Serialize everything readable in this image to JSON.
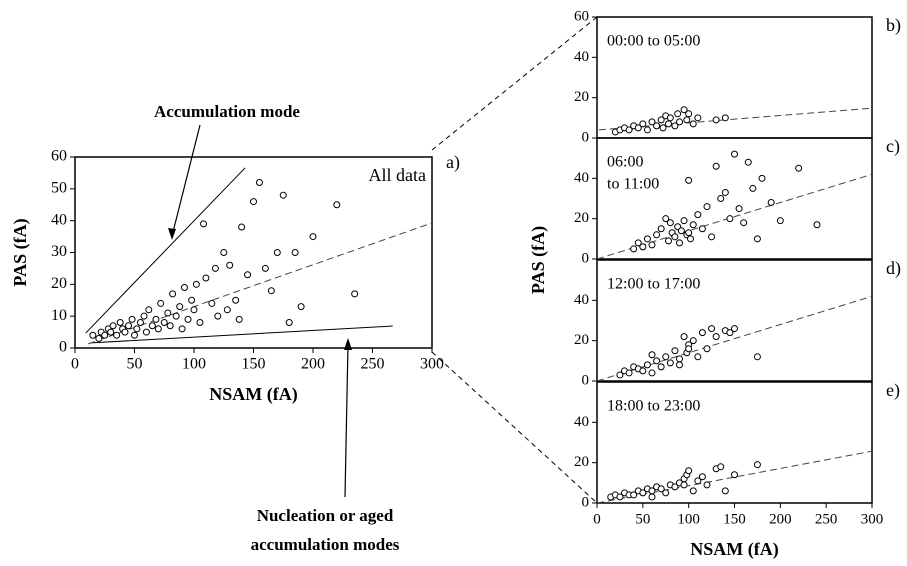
{
  "chart_data": [
    {
      "type": "scatter",
      "xlabel": "NSAM (fA)",
      "ylabel": "PAS (fA)",
      "panel_label": "a)",
      "label_lines": [
        "All data"
      ],
      "xlim": [
        0,
        300
      ],
      "ylim": [
        0,
        60
      ],
      "xticks": [
        0,
        50,
        100,
        150,
        200,
        250,
        300
      ],
      "yticks": [
        0,
        10,
        20,
        30,
        40,
        50,
        60
      ],
      "x": [
        15,
        20,
        22,
        25,
        28,
        30,
        32,
        35,
        38,
        40,
        42,
        45,
        48,
        50,
        52,
        55,
        58,
        60,
        62,
        65,
        68,
        70,
        72,
        75,
        78,
        80,
        82,
        85,
        88,
        90,
        92,
        95,
        98,
        100,
        102,
        105,
        108,
        110,
        115,
        118,
        120,
        125,
        128,
        130,
        135,
        138,
        140,
        145,
        150,
        155,
        160,
        165,
        170,
        175,
        180,
        185,
        190,
        200,
        220,
        235
      ],
      "y": [
        4,
        3,
        5,
        4,
        6,
        5,
        7,
        4,
        8,
        6,
        5,
        7,
        9,
        4,
        6,
        8,
        10,
        5,
        12,
        7,
        9,
        6,
        14,
        8,
        11,
        7,
        17,
        10,
        13,
        6,
        19,
        9,
        15,
        12,
        20,
        8,
        39,
        22,
        14,
        25,
        10,
        30,
        12,
        26,
        15,
        9,
        38,
        23,
        46,
        52,
        25,
        18,
        30,
        48,
        8,
        30,
        13,
        35,
        45,
        17
      ],
      "lines": [
        {
          "x": [
            9,
            143
          ],
          "y": [
            4.7,
            56.6
          ],
          "dashed": false
        },
        {
          "x": [
            13,
            267
          ],
          "y": [
            1.6,
            6.9
          ],
          "dashed": false
        },
        {
          "x": [
            11,
            300
          ],
          "y": [
            1.3,
            39.3
          ],
          "dashed": true
        }
      ]
    },
    {
      "type": "scatter",
      "panel_label": "b)",
      "label_lines": [
        "00:00 to 05:00"
      ],
      "xlim": [
        0,
        300
      ],
      "ylim": [
        0,
        60
      ],
      "yticks": [
        0,
        20,
        40,
        60
      ],
      "x": [
        20,
        25,
        30,
        35,
        40,
        45,
        50,
        55,
        60,
        65,
        70,
        72,
        75,
        78,
        80,
        85,
        88,
        90,
        95,
        98,
        100,
        105,
        110,
        130,
        140
      ],
      "y": [
        3,
        4,
        5,
        4,
        6,
        5,
        7,
        4,
        8,
        6,
        9,
        5,
        11,
        7,
        10,
        6,
        12,
        8,
        14,
        9,
        12,
        7,
        10,
        9,
        10
      ],
      "lines": [
        {
          "x": [
            2,
            300
          ],
          "y": [
            4,
            14.8
          ],
          "dashed": true
        }
      ]
    },
    {
      "type": "scatter",
      "panel_label": "c)",
      "label_lines": [
        "06:00",
        "to 11:00"
      ],
      "ylabel": "PAS (fA)",
      "xlim": [
        0,
        300
      ],
      "ylim": [
        0,
        60
      ],
      "yticks": [
        0,
        20,
        40
      ],
      "x": [
        40,
        45,
        50,
        55,
        60,
        65,
        70,
        75,
        78,
        80,
        82,
        85,
        88,
        90,
        92,
        95,
        98,
        100,
        102,
        105,
        110,
        115,
        120,
        125,
        130,
        135,
        140,
        145,
        150,
        155,
        160,
        165,
        170,
        175,
        180,
        190,
        200,
        220,
        240,
        100
      ],
      "y": [
        5,
        8,
        6,
        10,
        7,
        12,
        15,
        20,
        9,
        18,
        13,
        11,
        16,
        8,
        14,
        19,
        12,
        39,
        10,
        17,
        22,
        15,
        26,
        11,
        46,
        30,
        33,
        20,
        52,
        25,
        18,
        48,
        35,
        10,
        40,
        28,
        19,
        45,
        17,
        13
      ],
      "lines": [
        {
          "x": [
            0,
            300
          ],
          "y": [
            0,
            42
          ],
          "dashed": true
        }
      ]
    },
    {
      "type": "scatter",
      "panel_label": "d)",
      "label_lines": [
        "12:00 to 17:00"
      ],
      "xlim": [
        0,
        300
      ],
      "ylim": [
        0,
        60
      ],
      "yticks": [
        0,
        20,
        40
      ],
      "x": [
        25,
        30,
        35,
        40,
        45,
        50,
        55,
        60,
        65,
        70,
        75,
        80,
        85,
        90,
        95,
        98,
        100,
        105,
        110,
        115,
        120,
        125,
        130,
        140,
        145,
        150,
        175,
        60,
        90,
        100
      ],
      "y": [
        3,
        5,
        4,
        7,
        6,
        5,
        8,
        4,
        10,
        7,
        12,
        9,
        15,
        11,
        22,
        14,
        18,
        20,
        12,
        24,
        16,
        26,
        22,
        25,
        24,
        26,
        12,
        13,
        8,
        16
      ],
      "lines": [
        {
          "x": [
            0,
            300
          ],
          "y": [
            0,
            42
          ],
          "dashed": true
        }
      ]
    },
    {
      "type": "scatter",
      "panel_label": "e)",
      "label_lines": [
        "18:00 to 23:00"
      ],
      "xlabel": "NSAM (fA)",
      "xlim": [
        0,
        300
      ],
      "ylim": [
        0,
        60
      ],
      "yticks": [
        0,
        20,
        40
      ],
      "xticks": [
        0,
        50,
        100,
        150,
        200,
        250,
        300
      ],
      "x": [
        15,
        20,
        25,
        30,
        35,
        40,
        45,
        50,
        55,
        60,
        65,
        70,
        75,
        80,
        85,
        90,
        95,
        98,
        100,
        105,
        110,
        120,
        130,
        135,
        140,
        150,
        175,
        60,
        95,
        115
      ],
      "y": [
        3,
        4,
        3,
        5,
        4,
        4,
        6,
        5,
        7,
        6,
        8,
        7,
        5,
        9,
        8,
        10,
        12,
        14,
        16,
        6,
        11,
        9,
        17,
        18,
        6,
        14,
        19,
        3,
        9,
        13
      ],
      "lines": [
        {
          "x": [
            0,
            300
          ],
          "y": [
            0,
            25.7
          ],
          "dashed": true
        }
      ]
    }
  ],
  "annotations": [
    {
      "lines": [
        "Accumulation mode"
      ]
    },
    {
      "lines": [
        "Nucleation or aged",
        "accumulation modes"
      ]
    }
  ]
}
